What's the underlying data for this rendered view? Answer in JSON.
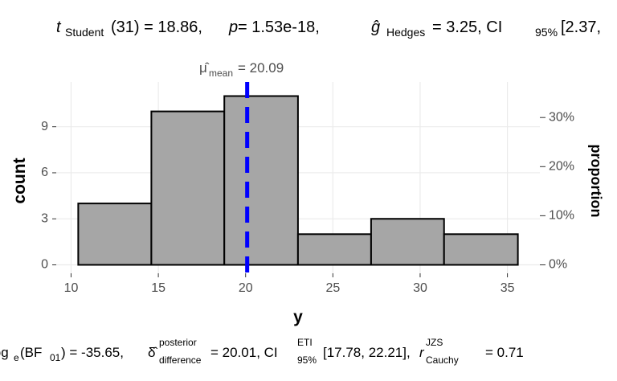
{
  "chart_data": {
    "type": "histogram",
    "title": {
      "parts": [
        "t",
        "Student",
        "(31) = 18.86, ",
        "p",
        " = 1.53e-18, ",
        "ĝ",
        "Hedges",
        " = 3.25, CI",
        "95%",
        " [2.37,"
      ]
    },
    "caption": {
      "parts": [
        "log",
        "e",
        "(BF",
        "01",
        ") = -35.65, ",
        "δ̂",
        "posterior",
        "difference",
        " = 20.01, CI",
        "ETI",
        "95%",
        " [17.78, 22.21], ",
        "r",
        "JZS",
        "Cauchy",
        " = 0.71"
      ]
    },
    "x_label": "y",
    "y_label": "count",
    "y2_label": "proportion",
    "bins": [
      10.41,
      14.6,
      18.78,
      23.0,
      27.19,
      31.37,
      35.6
    ],
    "values": [
      4,
      10,
      11,
      2,
      3,
      2
    ],
    "color": "#a6a6a6",
    "edge_color": "#000000",
    "xlim": [
      9.15,
      36.86
    ],
    "xticks": [
      10,
      15,
      20,
      25,
      30,
      35
    ],
    "ylim": [
      -0.55,
      11.55
    ],
    "yticks": [
      0,
      3,
      6,
      9
    ],
    "y2lim": [
      -1.72,
      36.09
    ],
    "y2ticks": [
      {
        "value": 0,
        "label": "0%"
      },
      {
        "value": 10,
        "label": "10%"
      },
      {
        "value": 20,
        "label": "20%"
      },
      {
        "value": 30,
        "label": "30%"
      }
    ],
    "grid": true,
    "mean_line": {
      "value": 20.09,
      "color": "#0000ff",
      "label_parts": [
        "μ̂",
        "mean",
        " = 20.09"
      ]
    }
  }
}
